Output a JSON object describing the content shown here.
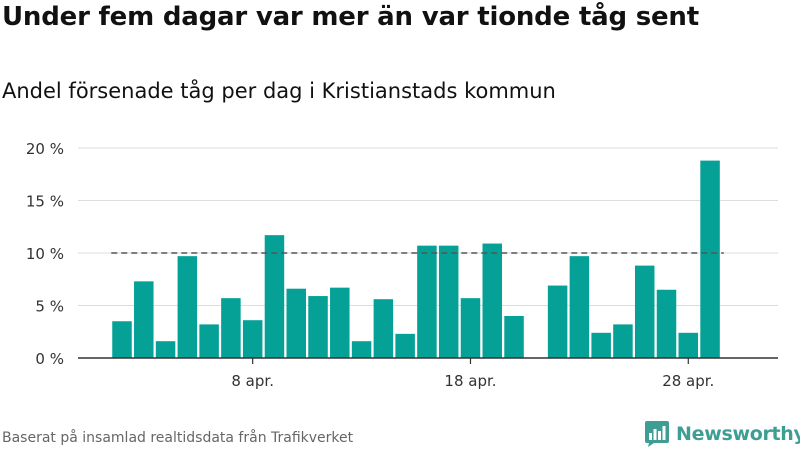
{
  "title": "Under fem dagar var mer än var tionde tåg sent",
  "subtitle": "Andel försenade tåg per dag i Kristianstads kommun",
  "source": "Baserat på insamlad realtidsdata från Trafikverket",
  "brand": "Newsworthy",
  "colors": {
    "bar": "#05a197",
    "reference_line": "#555555",
    "grid": "#dddddd",
    "axis": "#333333",
    "brand": "#3e9e93"
  },
  "chart_data": {
    "type": "bar",
    "dates": [
      "2024-04-02",
      "2024-04-03",
      "2024-04-04",
      "2024-04-05",
      "2024-04-06",
      "2024-04-07",
      "2024-04-08",
      "2024-04-09",
      "2024-04-10",
      "2024-04-11",
      "2024-04-12",
      "2024-04-13",
      "2024-04-14",
      "2024-04-15",
      "2024-04-16",
      "2024-04-17",
      "2024-04-18",
      "2024-04-19",
      "2024-04-20",
      "2024-04-21",
      "2024-04-22",
      "2024-04-23",
      "2024-04-24",
      "2024-04-25",
      "2024-04-26",
      "2024-04-27",
      "2024-04-28",
      "2024-04-29"
    ],
    "values": [
      3.5,
      7.3,
      1.6,
      9.7,
      3.2,
      5.7,
      3.6,
      11.7,
      6.6,
      5.9,
      6.7,
      1.6,
      5.6,
      2.3,
      10.7,
      10.7,
      5.7,
      10.9,
      4.0,
      null,
      6.9,
      9.7,
      2.4,
      3.2,
      8.8,
      6.5,
      2.4,
      18.8
    ],
    "yticks": [
      0,
      5,
      10,
      15,
      20
    ],
    "ytick_labels": [
      "0 %",
      "5 %",
      "10 %",
      "15 %",
      "20 %"
    ],
    "xtick_labels": [
      {
        "date": "2024-04-08",
        "label": "8 apr."
      },
      {
        "date": "2024-04-18",
        "label": "18 apr."
      },
      {
        "date": "2024-04-28",
        "label": "28 apr."
      }
    ],
    "ylim": [
      0,
      20
    ],
    "reference_line": 10,
    "grid": true,
    "legend": "none"
  }
}
